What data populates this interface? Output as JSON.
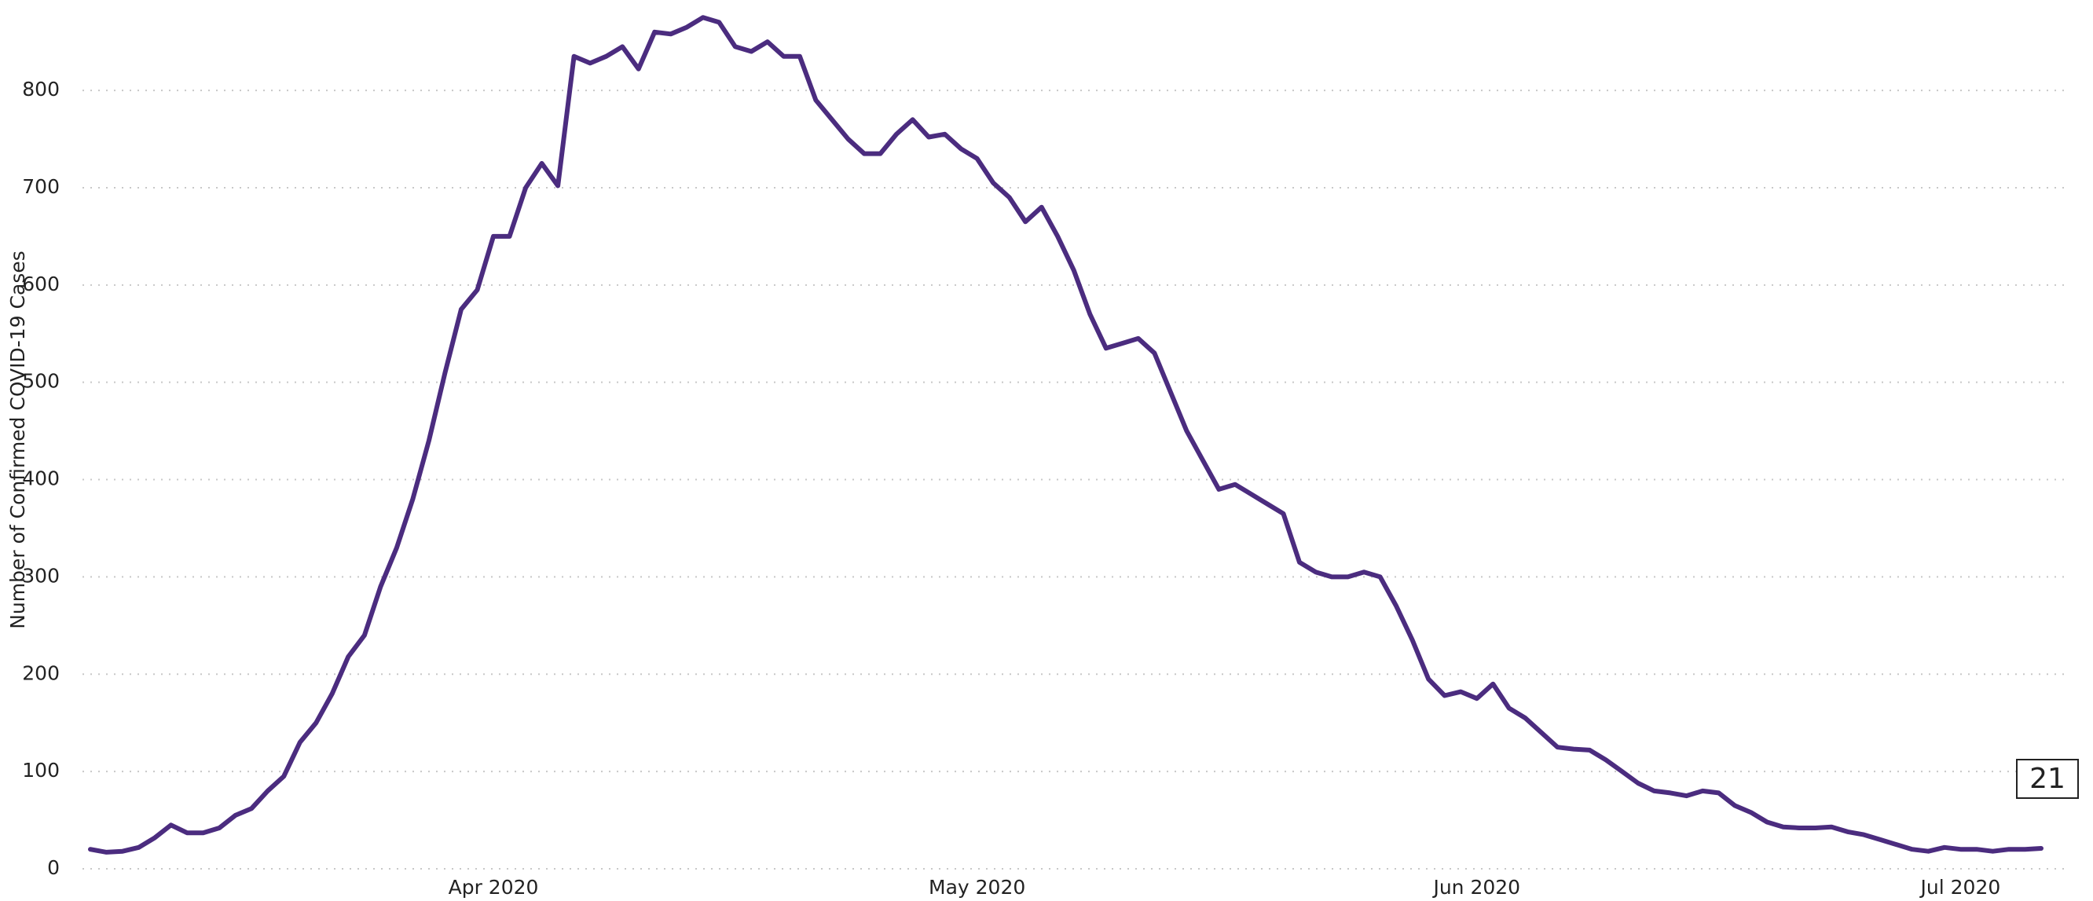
{
  "chart_data": {
    "type": "line",
    "y_label": "Number of Confirmed COVID-19 Cases",
    "categories": [
      null,
      null,
      null,
      null,
      null,
      null,
      null,
      null,
      null,
      null,
      null,
      null,
      null,
      null,
      null,
      null,
      null,
      null,
      null,
      null,
      null,
      null,
      null,
      null,
      null,
      "Apr 2020",
      null,
      null,
      null,
      null,
      null,
      null,
      null,
      null,
      null,
      null,
      null,
      null,
      null,
      null,
      null,
      null,
      null,
      null,
      null,
      null,
      null,
      null,
      null,
      null,
      null,
      null,
      null,
      null,
      null,
      "May 2020",
      null,
      null,
      null,
      null,
      null,
      null,
      null,
      null,
      null,
      null,
      null,
      null,
      null,
      null,
      null,
      null,
      null,
      null,
      null,
      null,
      null,
      null,
      null,
      null,
      null,
      null,
      null,
      null,
      null,
      null,
      "Jun 2020",
      null,
      null,
      null,
      null,
      null,
      null,
      null,
      null,
      null,
      null,
      null,
      null,
      null,
      null,
      null,
      null,
      null,
      null,
      null,
      null,
      null,
      null,
      null,
      null,
      null,
      null,
      null,
      null,
      null,
      "Jul 2020",
      null,
      null,
      null,
      null,
      null
    ],
    "series": [
      {
        "name": null,
        "color": "#4b2c7f",
        "values": [
          20,
          17,
          18,
          22,
          32,
          45,
          37,
          37,
          42,
          55,
          62,
          80,
          95,
          130,
          150,
          180,
          218,
          240,
          290,
          330,
          380,
          440,
          510,
          575,
          595,
          650,
          650,
          700,
          725,
          702,
          835,
          828,
          835,
          845,
          822,
          860,
          858,
          865,
          875,
          870,
          845,
          840,
          850,
          835,
          835,
          790,
          770,
          750,
          735,
          735,
          755,
          770,
          752,
          755,
          740,
          730,
          705,
          690,
          665,
          680,
          650,
          615,
          570,
          535,
          540,
          545,
          530,
          490,
          450,
          420,
          390,
          395,
          385,
          375,
          365,
          315,
          305,
          300,
          300,
          305,
          300,
          270,
          235,
          195,
          178,
          182,
          175,
          190,
          165,
          155,
          140,
          125,
          123,
          122,
          112,
          100,
          88,
          80,
          78,
          75,
          80,
          78,
          65,
          58,
          48,
          43,
          42,
          42,
          43,
          38,
          35,
          30,
          25,
          20,
          18,
          22,
          20,
          20,
          18,
          20,
          20,
          21
        ]
      }
    ],
    "ylim": [
      0,
      880
    ],
    "yticks": [
      0,
      100,
      200,
      300,
      400,
      500,
      600,
      700,
      800
    ],
    "grid": true
  }
}
